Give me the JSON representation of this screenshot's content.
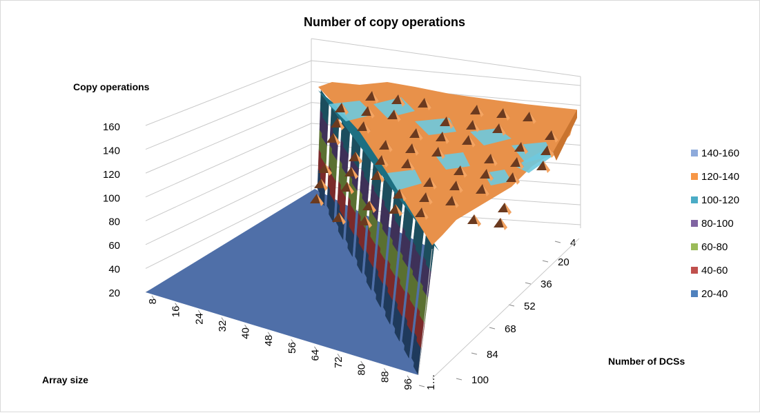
{
  "chart_data": {
    "type": "surface",
    "title": "Number of copy operations",
    "zlabel": "Copy operations",
    "xlabel": "Array size",
    "ylabel": "Number of DCSs",
    "z_ticks": [
      "20",
      "40",
      "60",
      "80",
      "100",
      "120",
      "140",
      "160"
    ],
    "x_ticks": [
      "8",
      "16",
      "24",
      "32",
      "40",
      "48",
      "56",
      "64",
      "72",
      "80",
      "88",
      "96"
    ],
    "y_ticks": [
      "4",
      "20",
      "36",
      "52",
      "68",
      "84",
      "100",
      "1…"
    ],
    "zlim": [
      20,
      160
    ],
    "grid": true,
    "legend_position": "right",
    "legend": [
      {
        "label": "140-160",
        "color": "#8eaadb"
      },
      {
        "label": "120-140",
        "color": "#f79646"
      },
      {
        "label": "100-120",
        "color": "#4bacc6"
      },
      {
        "label": "80-100",
        "color": "#8064a2"
      },
      {
        "label": "60-80",
        "color": "#9bbb59"
      },
      {
        "label": "40-60",
        "color": "#c0504d"
      },
      {
        "label": "20-40",
        "color": "#4f81bd"
      }
    ],
    "description_values": {
      "low_region_value": 20,
      "plateau_range": [
        120,
        145
      ]
    }
  }
}
